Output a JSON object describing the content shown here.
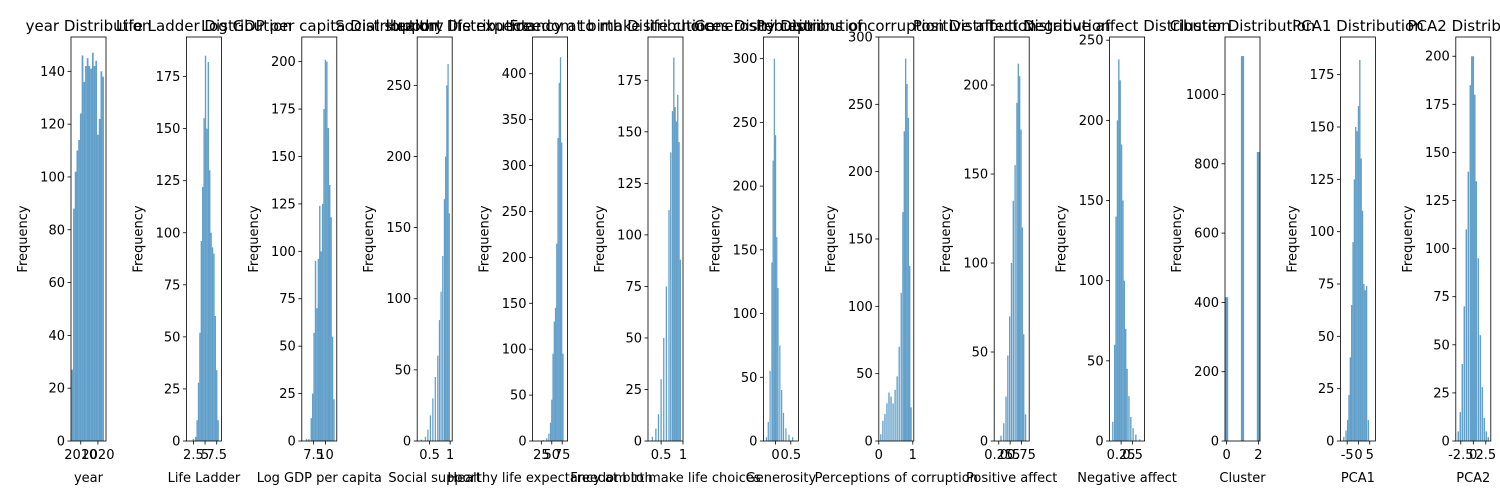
{
  "colors": {
    "bar": "#1f77b4",
    "bar_alpha": 0.7,
    "axes": "#000000",
    "background": "#ffffff"
  },
  "chart_data": [
    {
      "type": "bar",
      "title": "year Distribution",
      "xlabel": "year",
      "ylabel": "Frequency",
      "xlim": [
        2004.3,
        2024.7
      ],
      "ylim": [
        0,
        153
      ],
      "xticks": [
        2010,
        2020
      ],
      "yticks": [
        0,
        20,
        40,
        60,
        80,
        100,
        120,
        140
      ],
      "bins": [
        {
          "x": 2005.0,
          "y": 27
        },
        {
          "x": 2006.0,
          "y": 88
        },
        {
          "x": 2007.0,
          "y": 102
        },
        {
          "x": 2008.0,
          "y": 110
        },
        {
          "x": 2009.0,
          "y": 114
        },
        {
          "x": 2010.0,
          "y": 124
        },
        {
          "x": 2011.0,
          "y": 146
        },
        {
          "x": 2012.0,
          "y": 136
        },
        {
          "x": 2013.0,
          "y": 142
        },
        {
          "x": 2014.0,
          "y": 145
        },
        {
          "x": 2015.0,
          "y": 142
        },
        {
          "x": 2016.0,
          "y": 141
        },
        {
          "x": 2017.0,
          "y": 147
        },
        {
          "x": 2018.0,
          "y": 142
        },
        {
          "x": 2019.0,
          "y": 144
        },
        {
          "x": 2020.0,
          "y": 116
        },
        {
          "x": 2021.0,
          "y": 122
        },
        {
          "x": 2022.0,
          "y": 140
        },
        {
          "x": 2023.0,
          "y": 138
        }
      ]
    },
    {
      "type": "bar",
      "title": "Life Ladder Distribution",
      "xlabel": "Life Ladder",
      "ylabel": "Frequency",
      "xlim": [
        1.0,
        8.5
      ],
      "ylim": [
        0,
        194
      ],
      "xticks": [
        2.5,
        5.0,
        7.5
      ],
      "yticks": [
        0,
        25,
        50,
        75,
        100,
        125,
        150,
        175
      ],
      "bins": [
        {
          "x": 2.5,
          "y": 1
        },
        {
          "x": 3.0,
          "y": 2
        },
        {
          "x": 3.3,
          "y": 10
        },
        {
          "x": 3.6,
          "y": 28
        },
        {
          "x": 3.9,
          "y": 52
        },
        {
          "x": 4.2,
          "y": 96
        },
        {
          "x": 4.5,
          "y": 122
        },
        {
          "x": 4.8,
          "y": 155
        },
        {
          "x": 5.1,
          "y": 185
        },
        {
          "x": 5.4,
          "y": 150
        },
        {
          "x": 5.7,
          "y": 182
        },
        {
          "x": 6.0,
          "y": 130
        },
        {
          "x": 6.3,
          "y": 100
        },
        {
          "x": 6.6,
          "y": 93
        },
        {
          "x": 6.9,
          "y": 90
        },
        {
          "x": 7.2,
          "y": 60
        },
        {
          "x": 7.5,
          "y": 34
        },
        {
          "x": 7.8,
          "y": 10
        }
      ]
    },
    {
      "type": "bar",
      "title": "Log GDP per capita Distribution",
      "xlabel": "Log GDP per capita",
      "ylabel": "Frequency",
      "xlim": [
        5.0,
        12.4
      ],
      "ylim": [
        0,
        213
      ],
      "xticks": [
        7.5,
        10.0
      ],
      "yticks": [
        0,
        25,
        50,
        75,
        100,
        125,
        150,
        175,
        200
      ],
      "bins": [
        {
          "x": 6.0,
          "y": 1
        },
        {
          "x": 6.5,
          "y": 1
        },
        {
          "x": 7.0,
          "y": 12
        },
        {
          "x": 7.3,
          "y": 25
        },
        {
          "x": 7.6,
          "y": 57
        },
        {
          "x": 7.9,
          "y": 95
        },
        {
          "x": 8.2,
          "y": 70
        },
        {
          "x": 8.5,
          "y": 96
        },
        {
          "x": 8.8,
          "y": 124
        },
        {
          "x": 9.1,
          "y": 100
        },
        {
          "x": 9.4,
          "y": 125
        },
        {
          "x": 9.7,
          "y": 175
        },
        {
          "x": 10.0,
          "y": 201
        },
        {
          "x": 10.3,
          "y": 200
        },
        {
          "x": 10.6,
          "y": 165
        },
        {
          "x": 10.9,
          "y": 135
        },
        {
          "x": 11.2,
          "y": 118
        },
        {
          "x": 11.5,
          "y": 55
        },
        {
          "x": 11.8,
          "y": 22
        }
      ]
    },
    {
      "type": "bar",
      "title": "Social support Distribution",
      "xlabel": "Social support",
      "ylabel": "Frequency",
      "xlim": [
        0.2,
        1.05
      ],
      "ylim": [
        0,
        284
      ],
      "xticks": [
        0.5,
        1.0
      ],
      "yticks": [
        0,
        50,
        100,
        150,
        200,
        250
      ],
      "bins": [
        {
          "x": 0.3,
          "y": 1
        },
        {
          "x": 0.4,
          "y": 3
        },
        {
          "x": 0.46,
          "y": 8
        },
        {
          "x": 0.52,
          "y": 18
        },
        {
          "x": 0.58,
          "y": 30
        },
        {
          "x": 0.64,
          "y": 45
        },
        {
          "x": 0.7,
          "y": 60
        },
        {
          "x": 0.74,
          "y": 85
        },
        {
          "x": 0.78,
          "y": 105
        },
        {
          "x": 0.82,
          "y": 130
        },
        {
          "x": 0.86,
          "y": 170
        },
        {
          "x": 0.89,
          "y": 200
        },
        {
          "x": 0.92,
          "y": 250
        },
        {
          "x": 0.95,
          "y": 265
        },
        {
          "x": 0.98,
          "y": 160
        }
      ]
    },
    {
      "type": "bar",
      "title": "Healthy life expectancy at birth Distribution",
      "xlabel": "Healthy life expectancy at birth",
      "ylabel": "Frequency",
      "xlim": [
        4,
        88
      ],
      "ylim": [
        0,
        440
      ],
      "xticks": [
        25,
        50,
        75
      ],
      "yticks": [
        0,
        50,
        100,
        150,
        200,
        250,
        300,
        350,
        400
      ],
      "bins": [
        {
          "x": 30,
          "y": 1
        },
        {
          "x": 38,
          "y": 3
        },
        {
          "x": 43,
          "y": 8
        },
        {
          "x": 47,
          "y": 20
        },
        {
          "x": 50,
          "y": 45
        },
        {
          "x": 53,
          "y": 95
        },
        {
          "x": 56,
          "y": 130
        },
        {
          "x": 59,
          "y": 145
        },
        {
          "x": 62,
          "y": 215
        },
        {
          "x": 65,
          "y": 330
        },
        {
          "x": 68,
          "y": 390
        },
        {
          "x": 71,
          "y": 418
        },
        {
          "x": 74,
          "y": 325
        },
        {
          "x": 77,
          "y": 95
        }
      ]
    },
    {
      "type": "bar",
      "title": "Freedom to make life choices Distribution",
      "xlabel": "Freedom to make life choices",
      "ylabel": "Frequency",
      "xlim": [
        0.2,
        1.0
      ],
      "ylim": [
        0,
        196
      ],
      "xticks": [
        0.5,
        1.0
      ],
      "yticks": [
        0,
        25,
        50,
        75,
        100,
        125,
        150,
        175
      ],
      "bins": [
        {
          "x": 0.3,
          "y": 2
        },
        {
          "x": 0.38,
          "y": 6
        },
        {
          "x": 0.44,
          "y": 13
        },
        {
          "x": 0.5,
          "y": 30
        },
        {
          "x": 0.56,
          "y": 50
        },
        {
          "x": 0.62,
          "y": 75
        },
        {
          "x": 0.68,
          "y": 112
        },
        {
          "x": 0.72,
          "y": 140
        },
        {
          "x": 0.76,
          "y": 160
        },
        {
          "x": 0.79,
          "y": 186
        },
        {
          "x": 0.82,
          "y": 162
        },
        {
          "x": 0.85,
          "y": 155
        },
        {
          "x": 0.88,
          "y": 168
        },
        {
          "x": 0.91,
          "y": 145
        },
        {
          "x": 0.94,
          "y": 88
        }
      ]
    },
    {
      "type": "bar",
      "title": "Generosity Distribution",
      "xlabel": "Generosity",
      "ylabel": "Frequency",
      "xlim": [
        -0.4,
        0.75
      ],
      "ylim": [
        0,
        317
      ],
      "xticks": [
        0.0,
        0.5
      ],
      "yticks": [
        0,
        50,
        100,
        150,
        200,
        250,
        300
      ],
      "bins": [
        {
          "x": -0.3,
          "y": 3
        },
        {
          "x": -0.24,
          "y": 15
        },
        {
          "x": -0.18,
          "y": 55
        },
        {
          "x": -0.12,
          "y": 140
        },
        {
          "x": -0.08,
          "y": 220
        },
        {
          "x": -0.04,
          "y": 300
        },
        {
          "x": 0.0,
          "y": 240
        },
        {
          "x": 0.04,
          "y": 160
        },
        {
          "x": 0.08,
          "y": 120
        },
        {
          "x": 0.14,
          "y": 75
        },
        {
          "x": 0.2,
          "y": 40
        },
        {
          "x": 0.26,
          "y": 22
        },
        {
          "x": 0.34,
          "y": 10
        },
        {
          "x": 0.44,
          "y": 5
        },
        {
          "x": 0.56,
          "y": 3
        }
      ]
    },
    {
      "type": "bar",
      "title": "Perceptions of corruption Distribution",
      "xlabel": "Perceptions of corruption",
      "ylabel": "Frequency",
      "xlim": [
        0.0,
        1.03
      ],
      "ylim": [
        0,
        300
      ],
      "xticks": [
        0,
        1
      ],
      "yticks": [
        0,
        50,
        100,
        150,
        200,
        250,
        300
      ],
      "bins": [
        {
          "x": 0.06,
          "y": 5
        },
        {
          "x": 0.12,
          "y": 15
        },
        {
          "x": 0.18,
          "y": 20
        },
        {
          "x": 0.24,
          "y": 28
        },
        {
          "x": 0.3,
          "y": 36
        },
        {
          "x": 0.36,
          "y": 33
        },
        {
          "x": 0.42,
          "y": 28
        },
        {
          "x": 0.48,
          "y": 38
        },
        {
          "x": 0.54,
          "y": 48
        },
        {
          "x": 0.6,
          "y": 70
        },
        {
          "x": 0.66,
          "y": 110
        },
        {
          "x": 0.71,
          "y": 170
        },
        {
          "x": 0.75,
          "y": 230
        },
        {
          "x": 0.79,
          "y": 284
        },
        {
          "x": 0.83,
          "y": 265
        },
        {
          "x": 0.87,
          "y": 240
        },
        {
          "x": 0.91,
          "y": 130
        },
        {
          "x": 0.95,
          "y": 25
        }
      ]
    },
    {
      "type": "bar",
      "title": "Positive affect Distribution",
      "xlabel": "Positive affect",
      "ylabel": "Frequency",
      "xlim": [
        0.15,
        0.92
      ],
      "ylim": [
        0,
        227
      ],
      "xticks": [
        0.25,
        0.5,
        0.75
      ],
      "yticks": [
        0,
        50,
        100,
        150,
        200
      ],
      "bins": [
        {
          "x": 0.3,
          "y": 3
        },
        {
          "x": 0.36,
          "y": 10
        },
        {
          "x": 0.41,
          "y": 25
        },
        {
          "x": 0.45,
          "y": 48
        },
        {
          "x": 0.49,
          "y": 70
        },
        {
          "x": 0.53,
          "y": 100
        },
        {
          "x": 0.57,
          "y": 135
        },
        {
          "x": 0.61,
          "y": 155
        },
        {
          "x": 0.65,
          "y": 190
        },
        {
          "x": 0.68,
          "y": 212
        },
        {
          "x": 0.71,
          "y": 205
        },
        {
          "x": 0.74,
          "y": 175
        },
        {
          "x": 0.77,
          "y": 120
        },
        {
          "x": 0.8,
          "y": 60
        },
        {
          "x": 0.84,
          "y": 15
        }
      ]
    },
    {
      "type": "bar",
      "title": "Negative affect Distribution",
      "xlabel": "Negative affect",
      "ylabel": "Frequency",
      "xlim": [
        0.0,
        0.76
      ],
      "ylim": [
        0,
        252
      ],
      "xticks": [
        0.25,
        0.5
      ],
      "yticks": [
        0,
        50,
        100,
        150,
        200,
        250
      ],
      "bins": [
        {
          "x": 0.07,
          "y": 12
        },
        {
          "x": 0.11,
          "y": 60
        },
        {
          "x": 0.14,
          "y": 140
        },
        {
          "x": 0.17,
          "y": 200
        },
        {
          "x": 0.2,
          "y": 238
        },
        {
          "x": 0.23,
          "y": 225
        },
        {
          "x": 0.26,
          "y": 185
        },
        {
          "x": 0.29,
          "y": 150
        },
        {
          "x": 0.32,
          "y": 100
        },
        {
          "x": 0.35,
          "y": 70
        },
        {
          "x": 0.38,
          "y": 45
        },
        {
          "x": 0.42,
          "y": 28
        },
        {
          "x": 0.46,
          "y": 15
        },
        {
          "x": 0.51,
          "y": 8
        },
        {
          "x": 0.57,
          "y": 4
        },
        {
          "x": 0.65,
          "y": 1
        }
      ]
    },
    {
      "type": "bar",
      "title": "Cluster Distribution",
      "xlabel": "Cluster",
      "ylabel": "Frequency",
      "xlim": [
        -0.1,
        2.1
      ],
      "ylim": [
        0,
        1166
      ],
      "xticks": [
        0,
        2
      ],
      "yticks": [
        0,
        200,
        400,
        600,
        800,
        1000
      ],
      "bins": [
        {
          "x": 0.0,
          "y": 415
        },
        {
          "x": 1.0,
          "y": 1111
        },
        {
          "x": 2.0,
          "y": 834
        }
      ]
    },
    {
      "type": "bar",
      "title": "PCA1 Distribution",
      "xlabel": "PCA1",
      "ylabel": "Frequency",
      "xlim": [
        -8.0,
        7.5
      ],
      "ylim": [
        0,
        193
      ],
      "xticks": [
        -5,
        0,
        5
      ],
      "yticks": [
        0,
        25,
        50,
        75,
        100,
        125,
        150,
        175
      ],
      "bins": [
        {
          "x": -6.5,
          "y": 2
        },
        {
          "x": -5.5,
          "y": 5
        },
        {
          "x": -4.8,
          "y": 10
        },
        {
          "x": -4.2,
          "y": 22
        },
        {
          "x": -3.6,
          "y": 40
        },
        {
          "x": -3.0,
          "y": 65
        },
        {
          "x": -2.4,
          "y": 95
        },
        {
          "x": -1.8,
          "y": 125
        },
        {
          "x": -1.2,
          "y": 150
        },
        {
          "x": -0.6,
          "y": 148
        },
        {
          "x": 0.0,
          "y": 160
        },
        {
          "x": 0.6,
          "y": 182
        },
        {
          "x": 1.2,
          "y": 135
        },
        {
          "x": 1.8,
          "y": 110
        },
        {
          "x": 2.4,
          "y": 75
        },
        {
          "x": 3.0,
          "y": 72
        },
        {
          "x": 3.6,
          "y": 74
        },
        {
          "x": 4.4,
          "y": 10
        }
      ]
    },
    {
      "type": "bar",
      "title": "PCA2 Distribution",
      "xlabel": "PCA2",
      "ylabel": "Frequency",
      "xlim": [
        -3.5,
        3.5
      ],
      "ylim": [
        0,
        210
      ],
      "xticks": [
        -2.5,
        0.0,
        2.5
      ],
      "yticks": [
        0,
        25,
        50,
        75,
        100,
        125,
        150,
        175,
        200
      ],
      "bins": [
        {
          "x": -3.0,
          "y": 5
        },
        {
          "x": -2.6,
          "y": 15
        },
        {
          "x": -2.2,
          "y": 40
        },
        {
          "x": -1.8,
          "y": 70
        },
        {
          "x": -1.4,
          "y": 110
        },
        {
          "x": -1.0,
          "y": 140
        },
        {
          "x": -0.6,
          "y": 185
        },
        {
          "x": -0.3,
          "y": 200
        },
        {
          "x": 0.0,
          "y": 200
        },
        {
          "x": 0.3,
          "y": 180
        },
        {
          "x": 0.6,
          "y": 135
        },
        {
          "x": 1.0,
          "y": 95
        },
        {
          "x": 1.4,
          "y": 55
        },
        {
          "x": 1.8,
          "y": 28
        },
        {
          "x": 2.2,
          "y": 12
        },
        {
          "x": 2.6,
          "y": 5
        },
        {
          "x": 3.0,
          "y": 2
        }
      ]
    }
  ]
}
